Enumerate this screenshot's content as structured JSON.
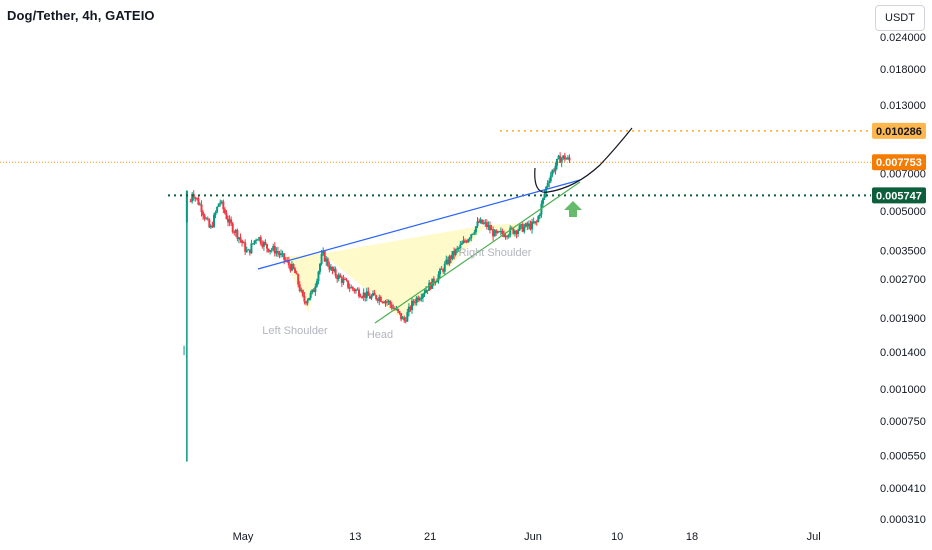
{
  "header": {
    "title": "Dog/Tether, 4h, GATEIO",
    "currency_button": "USDT"
  },
  "colors": {
    "up": "#089981",
    "down": "#f23645",
    "trendline_blue": "#2962ff",
    "trendline_green": "#4caf50",
    "level_orange": "#ff9800",
    "level_green": "#0d5e3a",
    "pattern_fill": "#fff59d",
    "arrow": "#66bb6a",
    "projection": "#131722"
  },
  "chart_data": {
    "type": "candlestick",
    "symbol": "Dog/Tether",
    "timeframe": "4h",
    "exchange": "GATEIO",
    "scale": "log",
    "y_ticks": [
      0.024,
      0.018,
      0.013,
      0.007,
      0.005,
      0.0035,
      0.0027,
      0.0019,
      0.0014,
      0.001,
      0.00075,
      0.00055,
      0.00041,
      0.00031
    ],
    "y_tick_labels": [
      "0.024000",
      "0.018000",
      "0.013000",
      "0.007000",
      "0.005000",
      "0.003500",
      "0.002700",
      "0.001900",
      "0.001400",
      "0.001000",
      "0.000750",
      "0.000550",
      "0.000410",
      "0.000310"
    ],
    "x_tick_labels": [
      "May",
      "13",
      "21",
      "Jun",
      "10",
      "18",
      "Jul"
    ],
    "price_levels": [
      {
        "label": "0.010286",
        "value": 0.010286,
        "style": "dotted",
        "color": "#ff9800"
      },
      {
        "label": "0.007753",
        "value": 0.007753,
        "style": "dotted",
        "color": "#ff9800",
        "current_price": true
      },
      {
        "label": "0.005747",
        "value": 0.005747,
        "style": "dotted",
        "color": "#0d5e3a"
      }
    ],
    "annotations": [
      {
        "text": "Left Shoulder"
      },
      {
        "text": "Head"
      },
      {
        "text": "Right Shoulder"
      }
    ],
    "pattern": "inverse head and shoulders",
    "approx_range": {
      "low": 0.00052,
      "high": 0.0082
    }
  }
}
